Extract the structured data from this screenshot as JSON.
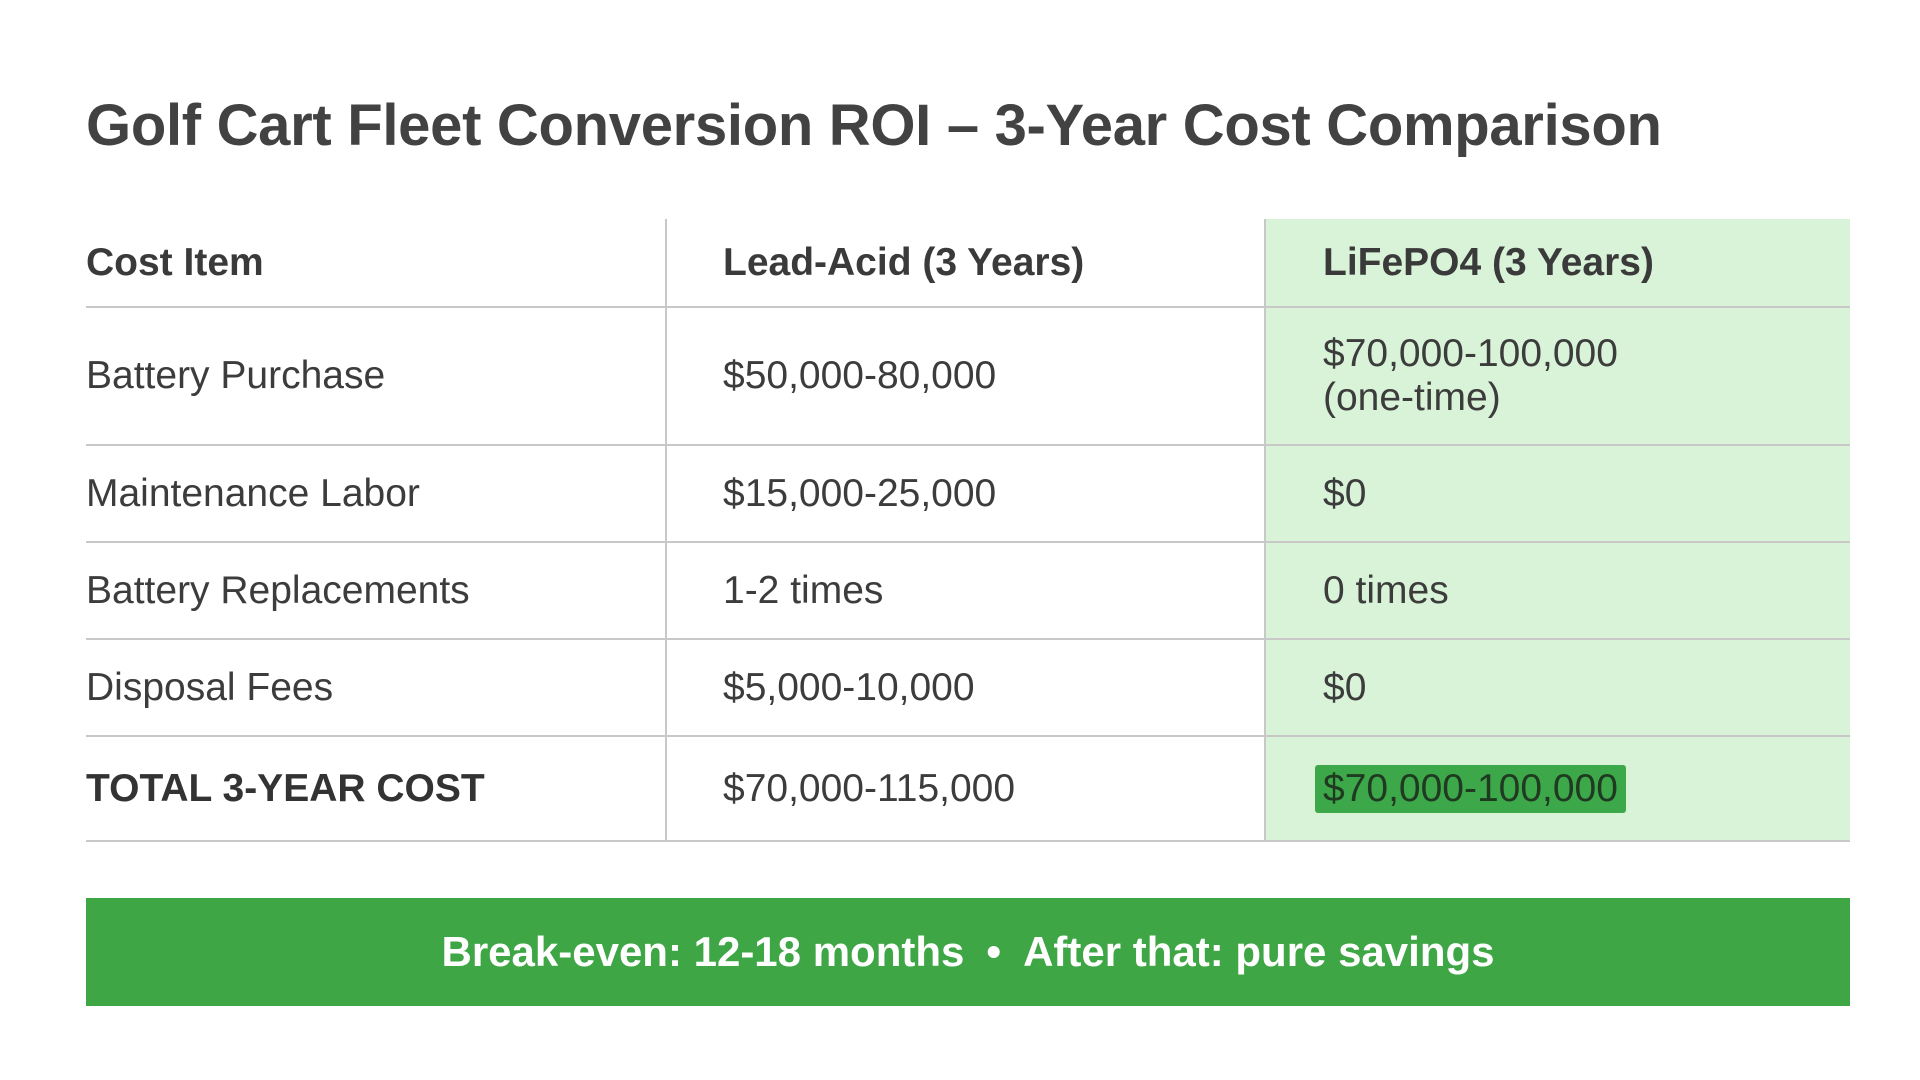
{
  "title": "Golf Cart Fleet Conversion ROI – 3-Year Cost Comparison",
  "chart_data": {
    "type": "table",
    "columns": [
      "Cost Item",
      "Lead-Acid (3 Years)",
      "LiFePO4 (3 Years)"
    ],
    "rows": [
      {
        "item": "Battery Purchase",
        "lead_acid": "$50,000-80,000",
        "lifepo4_line1": "$70,000-100,000",
        "lifepo4_line2": "(one-time)"
      },
      {
        "item": "Maintenance Labor",
        "lead_acid": "$15,000-25,000",
        "lifepo4": "$0"
      },
      {
        "item": "Battery Replacements",
        "lead_acid": "1-2 times",
        "lifepo4": "0 times"
      },
      {
        "item": "Disposal Fees",
        "lead_acid": "$5,000-10,000",
        "lifepo4": "$0"
      },
      {
        "item": "TOTAL 3-YEAR COST",
        "lead_acid": "$70,000-115,000",
        "lifepo4": "$70,000-100,000"
      }
    ],
    "highlight_column": "LiFePO4 (3 Years)",
    "highlight_color": "#d8f3d7",
    "total_highlight_color": "#3da84a"
  },
  "banner": {
    "left": "Break-even: 12-18 months",
    "separator": "•",
    "right": "After that: pure savings",
    "color": "#3ea645"
  }
}
